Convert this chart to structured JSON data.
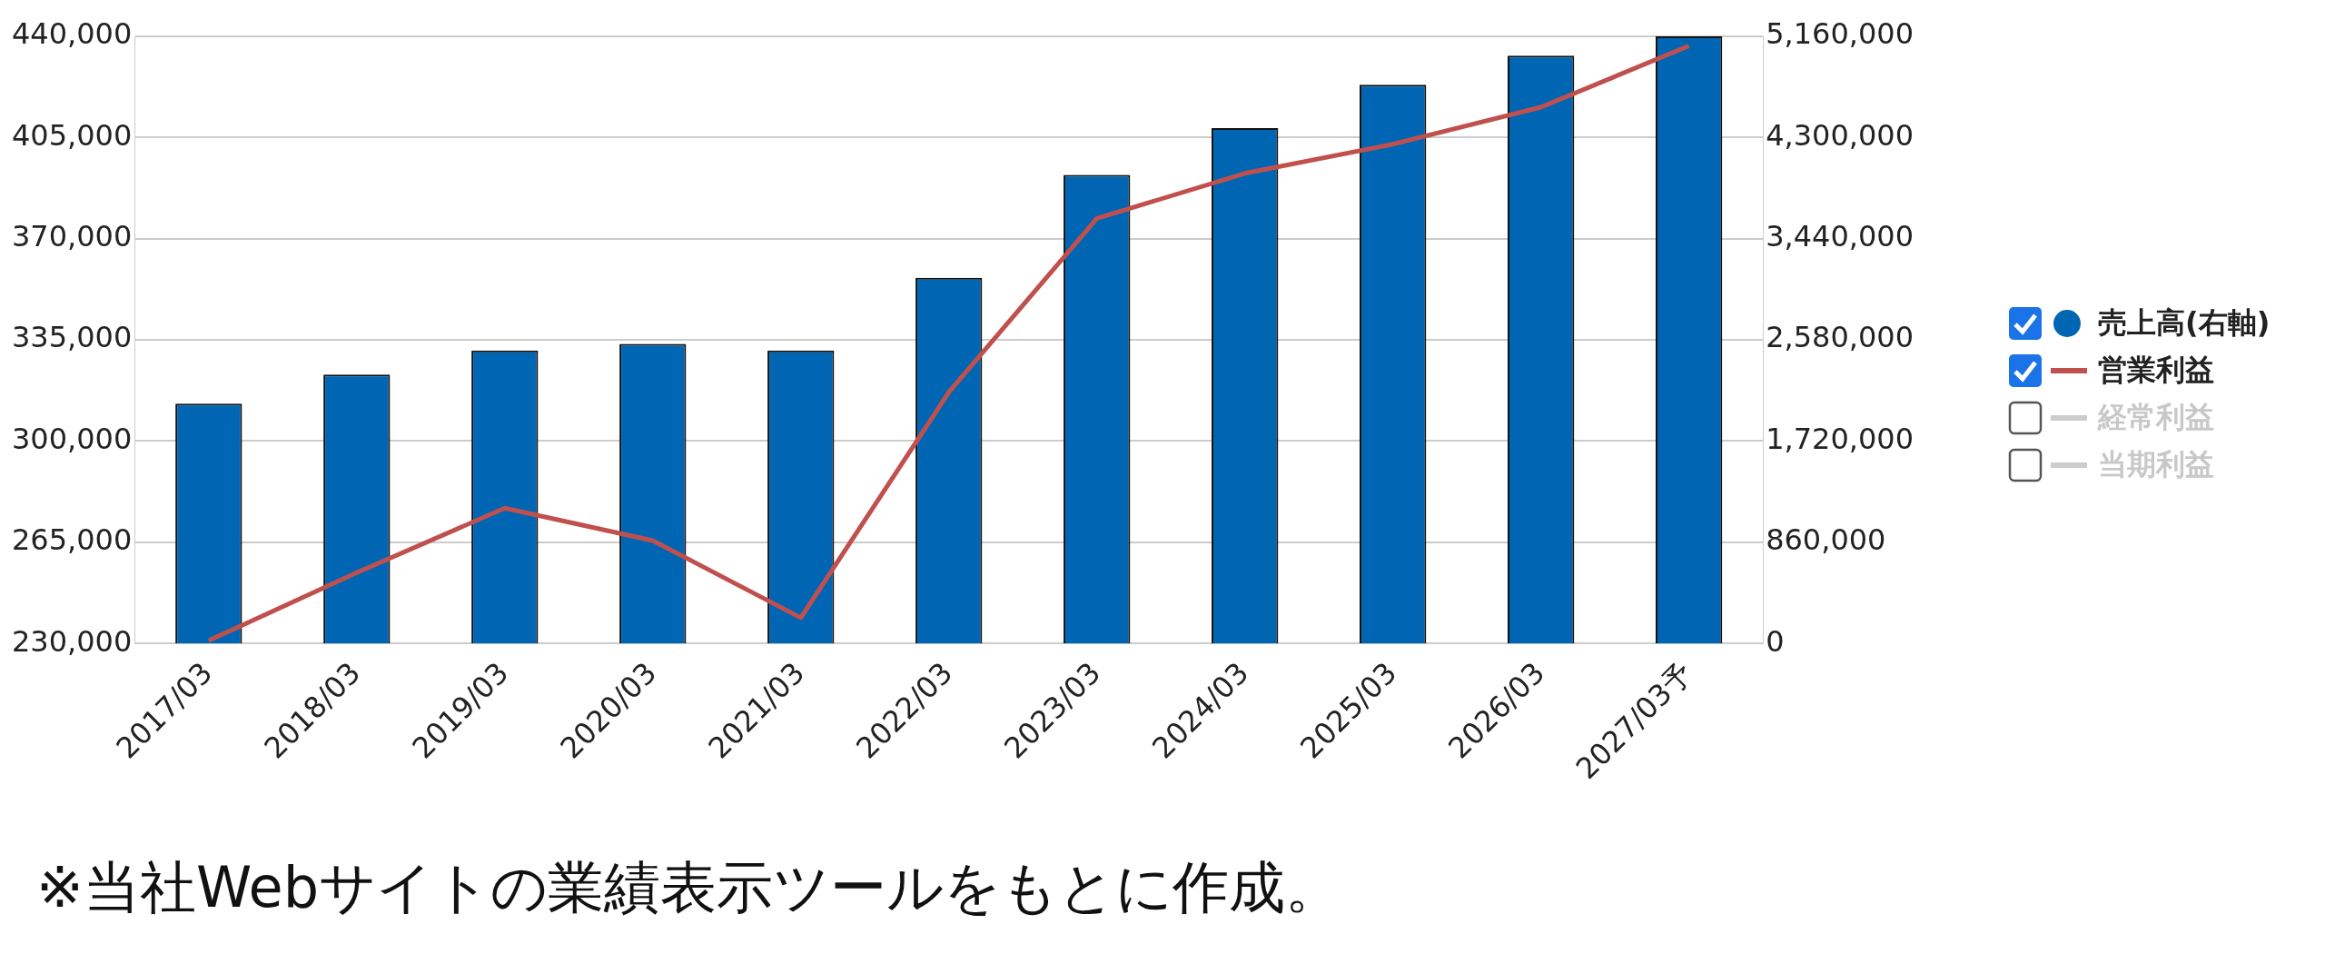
{
  "chart_data": {
    "type": "bar",
    "categories": [
      "2017/03",
      "2018/03",
      "2019/03",
      "2020/03",
      "2021/03",
      "2022/03",
      "2023/03",
      "2024/03",
      "2025/03",
      "2026/03",
      "2027/03予"
    ],
    "series": [
      {
        "name": "売上高(右軸)",
        "axis": "y2",
        "color": "#0066b3",
        "values": [
          2039000,
          2286000,
          2491000,
          2546000,
          2491000,
          3107000,
          3983000,
          4380000,
          4749000,
          4996000,
          5160000
        ]
      },
      {
        "name": "営業利益",
        "type": "line",
        "axis": "y",
        "color": "#c0504d",
        "values": [
          231000,
          254500,
          276800,
          265600,
          238900,
          316900,
          377000,
          392600,
          402700,
          415500,
          436700
        ]
      },
      {
        "name": "経常利益",
        "type": "line",
        "axis": "y",
        "color": "#cccccc",
        "values": [
          null,
          null,
          null,
          null,
          null,
          null,
          null,
          null,
          null,
          null,
          null
        ]
      },
      {
        "name": "当期利益",
        "type": "line",
        "axis": "y",
        "color": "#cccccc",
        "values": [
          null,
          null,
          null,
          null,
          null,
          null,
          null,
          null,
          null,
          null,
          null
        ]
      }
    ],
    "ylim": [
      230000,
      440000
    ],
    "yticks": [
      {
        "value": 230000,
        "label": "230,000"
      },
      {
        "value": 265000,
        "label": "265,000"
      },
      {
        "value": 300000,
        "label": "300,000"
      },
      {
        "value": 335000,
        "label": "335,000"
      },
      {
        "value": 370000,
        "label": "370,000"
      },
      {
        "value": 405000,
        "label": "405,000"
      },
      {
        "value": 440000,
        "label": "440,000"
      }
    ],
    "y2lim": [
      0,
      5160000
    ],
    "y2ticks": [
      {
        "value": 0,
        "label": "0"
      },
      {
        "value": 860000,
        "label": "860,000"
      },
      {
        "value": 1720000,
        "label": "1,720,000"
      },
      {
        "value": 2580000,
        "label": "2,580,000"
      },
      {
        "value": 3440000,
        "label": "3,440,000"
      },
      {
        "value": 4300000,
        "label": "4,300,000"
      },
      {
        "value": 5160000,
        "label": "5,160,000"
      }
    ],
    "grid": "y",
    "legend": "right",
    "marker": "none",
    "line_style": "solid",
    "annotations": [
      "※当社Webサイトの業績表示ツールをもとに作成。"
    ]
  }
}
